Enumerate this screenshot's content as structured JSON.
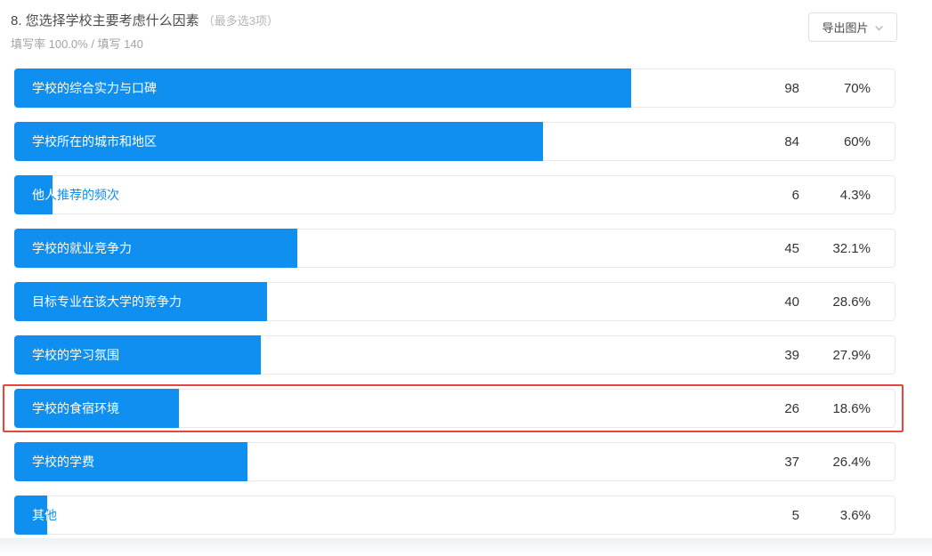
{
  "header": {
    "question_title": "8. 您选择学校主要考虑什么因素",
    "question_hint": "（最多选3项）",
    "stats_line": "填写率 100.0% / 填写 140",
    "export_button_label": "导出图片"
  },
  "chart_data": {
    "type": "bar",
    "orientation": "horizontal",
    "title": "您选择学校主要考虑什么因素（最多选3项）",
    "fill_rate": "100.0%",
    "total_responses": 140,
    "categories": [
      "学校的综合实力与口碑",
      "学校所在的城市和地区",
      "他人推荐的频次",
      "学校的就业竞争力",
      "目标专业在该大学的竞争力",
      "学校的学习氛围",
      "学校的食宿环境",
      "学校的学费",
      "其他"
    ],
    "values": [
      98,
      84,
      6,
      45,
      40,
      39,
      26,
      37,
      5
    ],
    "percentages": [
      "70%",
      "60%",
      "4.3%",
      "32.1%",
      "28.6%",
      "27.9%",
      "18.6%",
      "26.4%",
      "3.6%"
    ],
    "highlighted_index": 6,
    "bar_color": "#0f8ff0",
    "highlight_color": "#e8463c",
    "xlim": [
      0,
      100
    ],
    "grid": false,
    "legend": false
  }
}
